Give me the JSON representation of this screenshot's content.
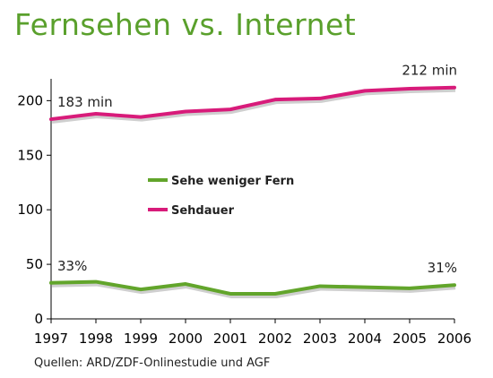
{
  "title": "Fernsehen vs. Internet",
  "source": "Quellen: ARD/ZDF-Onlinestudie und AGF",
  "chart_data": {
    "type": "line",
    "x": [
      "1997",
      "1998",
      "1999",
      "2000",
      "2001",
      "2002",
      "2003",
      "2004",
      "2005",
      "2006"
    ],
    "ylim": [
      0,
      220
    ],
    "yticks": [
      "0",
      "50",
      "100",
      "150",
      "200"
    ],
    "legend_position": "center-left",
    "grid": false,
    "series": [
      {
        "name": "Sehe weniger Fern",
        "color": "#62a52b",
        "values": [
          33,
          34,
          27,
          32,
          23,
          23,
          30,
          29,
          28,
          31
        ]
      },
      {
        "name": "Sehdauer",
        "color": "#d81b7a",
        "values": [
          183,
          188,
          185,
          190,
          192,
          201,
          202,
          209,
          211,
          212
        ]
      }
    ],
    "annotations": [
      {
        "text": "183 min",
        "series": 1,
        "index": 0
      },
      {
        "text": "212 min",
        "series": 1,
        "index": 9
      },
      {
        "text": "33%",
        "series": 0,
        "index": 0
      },
      {
        "text": "31%",
        "series": 0,
        "index": 9
      }
    ]
  }
}
